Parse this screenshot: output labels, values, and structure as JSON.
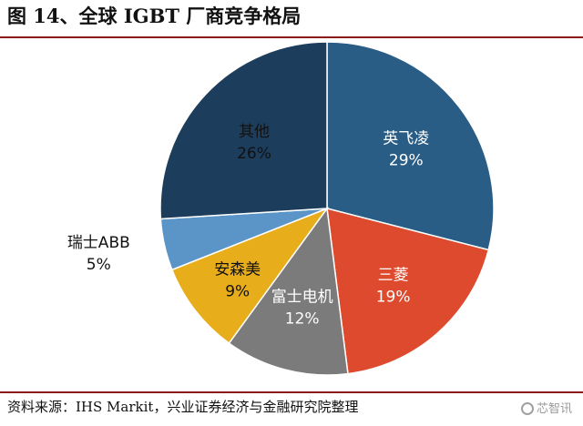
{
  "figure_title": "图 14、全球 IGBT 厂商竞争格局",
  "source_note": "资料来源：IHS Markit，兴业证券经济与金融研究院整理",
  "watermark": "芯智讯",
  "chart_data": {
    "type": "pie",
    "title": "",
    "start_angle_deg": 0,
    "direction": "clockwise",
    "slices": [
      {
        "name": "英飞凌",
        "value": 29,
        "label": "29%",
        "color": "#2a5d86",
        "label_color": "#ffffff"
      },
      {
        "name": "三菱",
        "value": 19,
        "label": "19%",
        "color": "#dd4a2d",
        "label_color": "#ffffff"
      },
      {
        "name": "富士电机",
        "value": 12,
        "label": "12%",
        "color": "#7b7b7b",
        "label_color": "#ffffff"
      },
      {
        "name": "安森美",
        "value": 9,
        "label": "9%",
        "color": "#e8ad1b",
        "label_color": "#111111"
      },
      {
        "name": "瑞士ABB",
        "value": 5,
        "label": "5%",
        "color": "#5b95c8",
        "label_color": "#111111",
        "label_outside": true
      },
      {
        "name": "其他",
        "value": 26,
        "label": "26%",
        "color": "#1d3d5c",
        "label_color": "#111111"
      }
    ]
  }
}
